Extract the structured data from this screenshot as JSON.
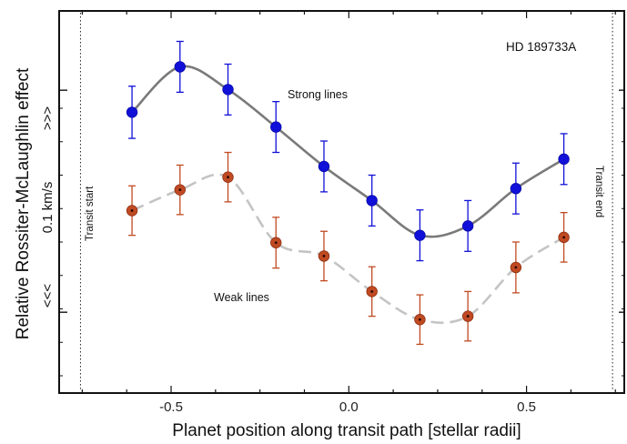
{
  "chart_data": {
    "type": "line",
    "xlabel": "Planet position along transit path [stellar radii]",
    "ylabel": "Relative Rossiter-McLaughlin effect",
    "y_scale_label": "0.1 km/s",
    "y_arrow_up": ">>>",
    "y_arrow_down": "<<<",
    "xlim": [
      -0.815,
      0.775
    ],
    "x_ticks": [
      -0.5,
      0.0,
      0.5
    ],
    "x_tick_labels": [
      "-0.5",
      "0.0",
      "0.5"
    ],
    "star_label": "HD 189733A",
    "transit_start": {
      "x": -0.755,
      "label": "Transit start"
    },
    "transit_end": {
      "x": 0.742,
      "label": "Transit end"
    },
    "series": [
      {
        "name": "Strong lines",
        "color": "#1010d8",
        "line_color": "#7a7a7a",
        "line_style": "solid",
        "x": [
          -0.61,
          -0.475,
          -0.34,
          -0.205,
          -0.07,
          0.065,
          0.2,
          0.335,
          0.47,
          0.605
        ],
        "y": [
          1.94,
          2.62,
          2.28,
          1.72,
          1.13,
          0.62,
          0.1,
          0.24,
          0.8,
          1.24
        ],
        "err": [
          0.39,
          0.38,
          0.38,
          0.38,
          0.38,
          0.38,
          0.38,
          0.38,
          0.38,
          0.38
        ]
      },
      {
        "name": "Weak lines",
        "color": "#c04a22",
        "line_color": "#c4c4c4",
        "line_style": "dashed",
        "x": [
          -0.61,
          -0.475,
          -0.34,
          -0.205,
          -0.07,
          0.065,
          0.2,
          0.335,
          0.47,
          0.605
        ],
        "y": [
          0.47,
          0.78,
          0.97,
          -0.01,
          -0.21,
          -0.74,
          -1.16,
          -1.11,
          -0.38,
          0.07
        ],
        "err": [
          0.37,
          0.37,
          0.37,
          0.38,
          0.37,
          0.37,
          0.37,
          0.37,
          0.38,
          0.37
        ]
      }
    ]
  }
}
